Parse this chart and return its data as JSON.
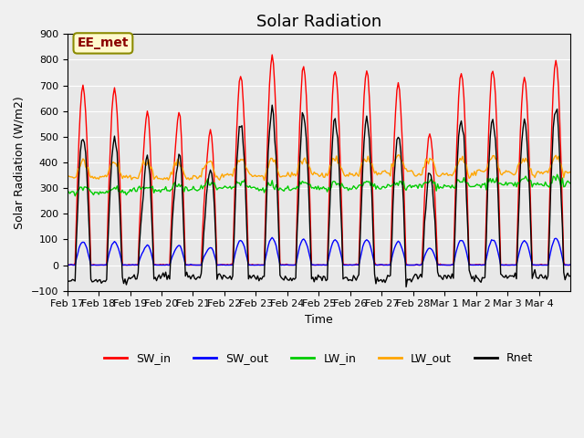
{
  "title": "Solar Radiation",
  "xlabel": "Time",
  "ylabel": "Solar Radiation (W/m2)",
  "ylim": [
    -100,
    900
  ],
  "n_days": 16,
  "annotation_text": "EE_met",
  "annotation_color": "#8B0000",
  "annotation_bg": "#FFFACD",
  "annotation_edge": "#8B8B00",
  "lines": {
    "SW_in": {
      "color": "#FF0000",
      "lw": 1.0
    },
    "SW_out": {
      "color": "#0000FF",
      "lw": 1.0
    },
    "LW_in": {
      "color": "#00CC00",
      "lw": 1.0
    },
    "LW_out": {
      "color": "#FFA500",
      "lw": 1.0
    },
    "Rnet": {
      "color": "#000000",
      "lw": 1.0
    }
  },
  "x_tick_labels": [
    "Feb 17",
    "Feb 18",
    "Feb 19",
    "Feb 20",
    "Feb 21",
    "Feb 22",
    "Feb 23",
    "Feb 24",
    "Feb 25",
    "Feb 26",
    "Feb 27",
    "Feb 28",
    "Mar 1",
    "Mar 2",
    "Mar 3",
    "Mar 4"
  ],
  "y_ticks": [
    -100,
    0,
    100,
    200,
    300,
    400,
    500,
    600,
    700,
    800,
    900
  ],
  "fig_facecolor": "#F0F0F0",
  "ax_facecolor": "#E8E8E8",
  "grid_color": "#FFFFFF",
  "title_fontsize": 13,
  "label_fontsize": 9,
  "tick_fontsize": 8,
  "legend_fontsize": 9
}
